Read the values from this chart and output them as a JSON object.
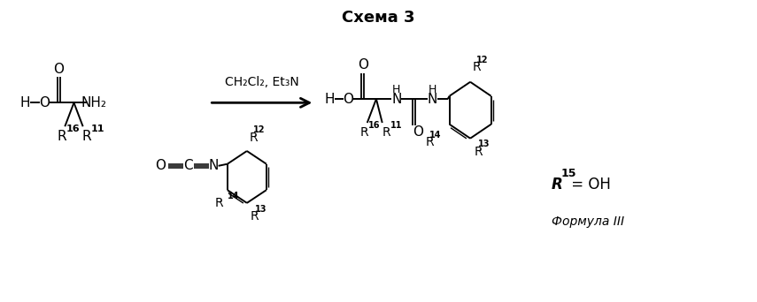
{
  "title": "Схема 3",
  "title_fontsize": 13,
  "title_weight": "bold",
  "bg_color": "#ffffff",
  "line_color": "#000000",
  "figsize": [
    8.55,
    3.42
  ],
  "dpi": 100,
  "arrow_label": "CH₂Cl₂, Et₃N",
  "annotation_r15": "R",
  "annotation_r15_sup": "15",
  "annotation_r15_eq": " = OH",
  "annotation_formula": "Формула III",
  "font_size": 11,
  "font_size_small": 9
}
